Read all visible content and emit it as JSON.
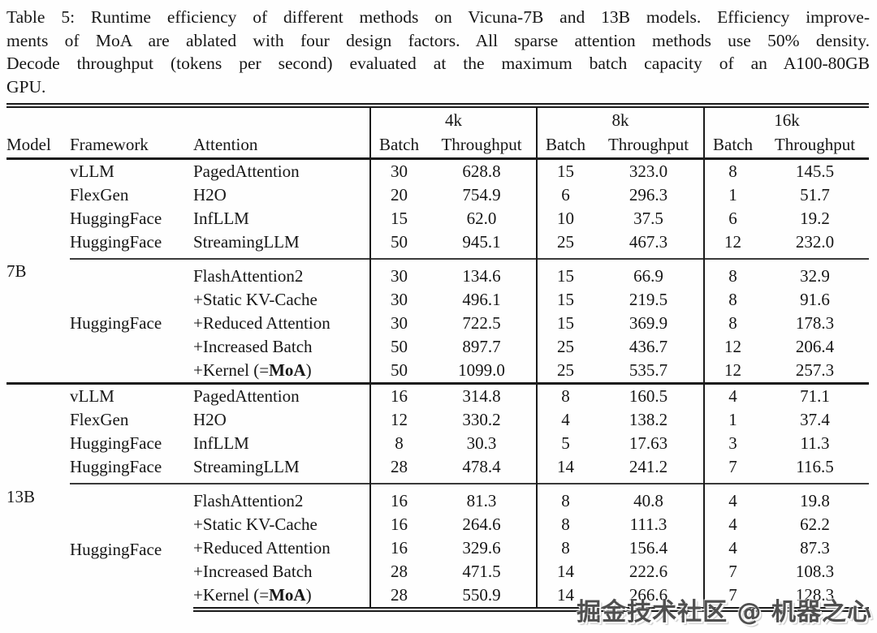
{
  "caption": {
    "lines": [
      "Table 5: Runtime efficiency of different methods on Vicuna-7B and 13B models. Efficiency improve-",
      "ments of MoA are ablated with four design factors. All sparse attention methods use 50% density.",
      "Decode throughput (tokens per second) evaluated at the maximum batch capacity of an A100-80GB",
      "GPU."
    ]
  },
  "table": {
    "header": {
      "model": "Model",
      "framework": "Framework",
      "attention": "Attention",
      "groups": [
        {
          "label": "4k"
        },
        {
          "label": "8k"
        },
        {
          "label": "16k"
        }
      ],
      "batch_label": "Batch",
      "throughput_label": "Throughput"
    },
    "sections": [
      {
        "model": "7B",
        "groups": [
          {
            "framework_span": null,
            "rows": [
              {
                "framework": "vLLM",
                "attention": "PagedAttention",
                "values": [
                  "30",
                  "628.8",
                  "15",
                  "323.0",
                  "8",
                  "145.5"
                ]
              },
              {
                "framework": "FlexGen",
                "attention": "H2O",
                "values": [
                  "20",
                  "754.9",
                  "6",
                  "296.3",
                  "1",
                  "51.7"
                ]
              },
              {
                "framework": "HuggingFace",
                "attention": "InfLLM",
                "values": [
                  "15",
                  "62.0",
                  "10",
                  "37.5",
                  "6",
                  "19.2"
                ]
              },
              {
                "framework": "HuggingFace",
                "attention": "StreamingLLM",
                "values": [
                  "50",
                  "945.1",
                  "25",
                  "467.3",
                  "12",
                  "232.0"
                ]
              }
            ]
          },
          {
            "framework_span": "HuggingFace",
            "rows": [
              {
                "attention": "FlashAttention2",
                "values": [
                  "30",
                  "134.6",
                  "15",
                  "66.9",
                  "8",
                  "32.9"
                ]
              },
              {
                "attention": "+Static KV-Cache",
                "values": [
                  "30",
                  "496.1",
                  "15",
                  "219.5",
                  "8",
                  "91.6"
                ]
              },
              {
                "attention": "+Reduced Attention",
                "values": [
                  "30",
                  "722.5",
                  "15",
                  "369.9",
                  "8",
                  "178.3"
                ]
              },
              {
                "attention": "+Increased Batch",
                "values": [
                  "50",
                  "897.7",
                  "25",
                  "436.7",
                  "12",
                  "206.4"
                ]
              },
              {
                "attention": {
                  "pre": "+Kernel (=",
                  "bold": "MoA",
                  "post": ")"
                },
                "values": [
                  "50",
                  "1099.0",
                  "25",
                  "535.7",
                  "12",
                  "257.3"
                ],
                "bold_throughput": true
              }
            ]
          }
        ]
      },
      {
        "model": "13B",
        "groups": [
          {
            "framework_span": null,
            "rows": [
              {
                "framework": "vLLM",
                "attention": "PagedAttention",
                "values": [
                  "16",
                  "314.8",
                  "8",
                  "160.5",
                  "4",
                  "71.1"
                ]
              },
              {
                "framework": "FlexGen",
                "attention": "H2O",
                "values": [
                  "12",
                  "330.2",
                  "4",
                  "138.2",
                  "1",
                  "37.4"
                ]
              },
              {
                "framework": "HuggingFace",
                "attention": "InfLLM",
                "values": [
                  "8",
                  "30.3",
                  "5",
                  "17.63",
                  "3",
                  "11.3"
                ]
              },
              {
                "framework": "HuggingFace",
                "attention": "StreamingLLM",
                "values": [
                  "28",
                  "478.4",
                  "14",
                  "241.2",
                  "7",
                  "116.5"
                ]
              }
            ]
          },
          {
            "framework_span": "HuggingFace",
            "rows": [
              {
                "attention": "FlashAttention2",
                "values": [
                  "16",
                  "81.3",
                  "8",
                  "40.8",
                  "4",
                  "19.8"
                ]
              },
              {
                "attention": "+Static KV-Cache",
                "values": [
                  "16",
                  "264.6",
                  "8",
                  "111.3",
                  "4",
                  "62.2"
                ]
              },
              {
                "attention": "+Reduced Attention",
                "values": [
                  "16",
                  "329.6",
                  "8",
                  "156.4",
                  "4",
                  "87.3"
                ]
              },
              {
                "attention": "+Increased Batch",
                "values": [
                  "28",
                  "471.5",
                  "14",
                  "222.6",
                  "7",
                  "108.3"
                ]
              },
              {
                "attention": {
                  "pre": "+Kernel (=",
                  "bold": "MoA",
                  "post": ")"
                },
                "values": [
                  "28",
                  "550.9",
                  "14",
                  "266.6",
                  "7",
                  "128.3"
                ],
                "bold_throughput": true
              }
            ]
          }
        ]
      }
    ]
  },
  "watermark": {
    "text": "掘金技术社区 @ 机器之心"
  }
}
